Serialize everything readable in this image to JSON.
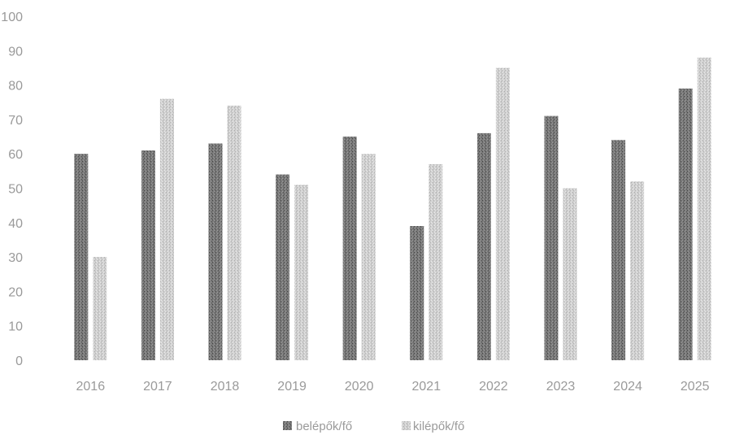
{
  "chart_data": {
    "type": "bar",
    "title": "",
    "xlabel": "",
    "ylabel": "",
    "categories": [
      "2016",
      "2017",
      "2018",
      "2019",
      "2020",
      "2021",
      "2022",
      "2023",
      "2024",
      "2025"
    ],
    "series": [
      {
        "name": "belépők/fő",
        "color": "#6e6e6e",
        "values": [
          60,
          61,
          63,
          54,
          65,
          39,
          66,
          71,
          64,
          79
        ]
      },
      {
        "name": "kilépők/fő",
        "color": "#c2c2c2",
        "values": [
          30,
          76,
          74,
          51,
          60,
          57,
          85,
          50,
          52,
          88
        ]
      }
    ],
    "ylim": [
      0,
      100
    ],
    "yticks": [
      0,
      10,
      20,
      30,
      40,
      50,
      60,
      70,
      80,
      90,
      100
    ],
    "grid": false,
    "legend_position": "bottom-center"
  }
}
